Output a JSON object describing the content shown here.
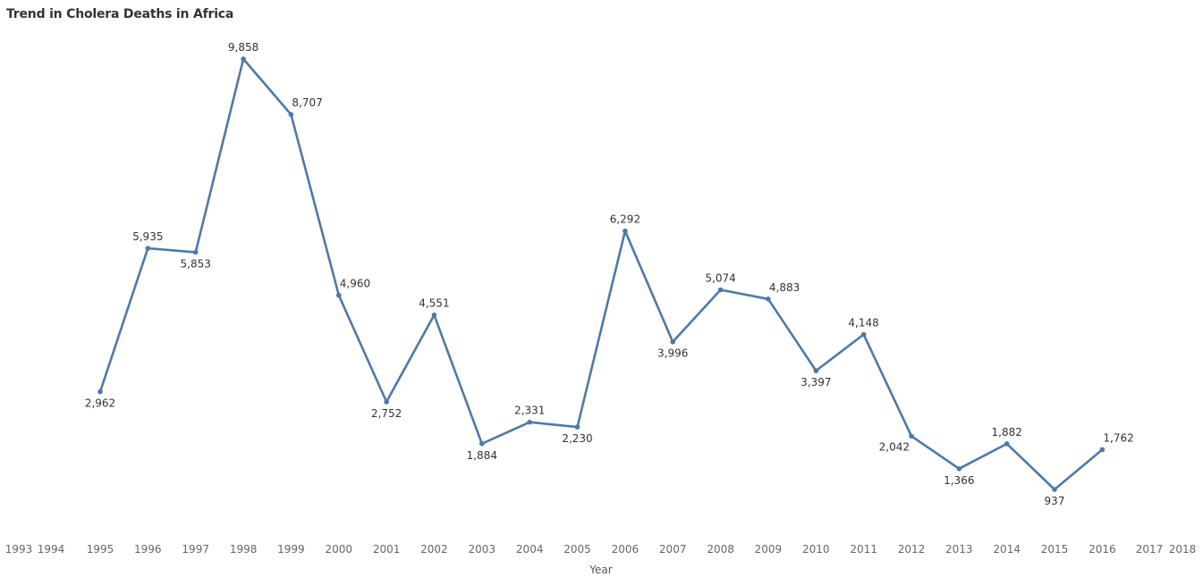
{
  "chart_data": {
    "type": "line",
    "title": "Trend in Cholera Deaths in Africa",
    "xlabel": "Year",
    "ylabel": "",
    "x_ticks": [
      1993,
      1994,
      1995,
      1996,
      1997,
      1998,
      1999,
      2000,
      2001,
      2002,
      2003,
      2004,
      2005,
      2006,
      2007,
      2008,
      2009,
      2010,
      2011,
      2012,
      2013,
      2014,
      2015,
      2016,
      2017,
      2018
    ],
    "x": [
      1995,
      1996,
      1997,
      1998,
      1999,
      2000,
      2001,
      2002,
      2003,
      2004,
      2005,
      2006,
      2007,
      2008,
      2009,
      2010,
      2011,
      2012,
      2013,
      2014,
      2015,
      2016
    ],
    "series": [
      {
        "values": [
          2962,
          5935,
          5853,
          9858,
          8707,
          4960,
          2752,
          4551,
          1884,
          2331,
          2230,
          6292,
          3996,
          5074,
          4883,
          3397,
          4148,
          2042,
          1366,
          1882,
          937,
          1762
        ],
        "labels": [
          "2,962",
          "5,935",
          "5,853",
          "9,858",
          "8,707",
          "4,960",
          "2,752",
          "4,551",
          "1,884",
          "2,331",
          "2,230",
          "6,292",
          "3,996",
          "5,074",
          "4,883",
          "3,397",
          "4,148",
          "2,042",
          "1,366",
          "1,882",
          "937",
          "1,762"
        ],
        "label_positions": [
          "below",
          "above",
          "below",
          "above",
          "above-right",
          "above-right",
          "below",
          "above",
          "below",
          "above",
          "below",
          "above",
          "below",
          "above",
          "above-right",
          "below",
          "above",
          "below-left",
          "below",
          "above",
          "below",
          "above-right"
        ],
        "color": "#4e79a7"
      }
    ],
    "grid": false,
    "legend": "none"
  }
}
